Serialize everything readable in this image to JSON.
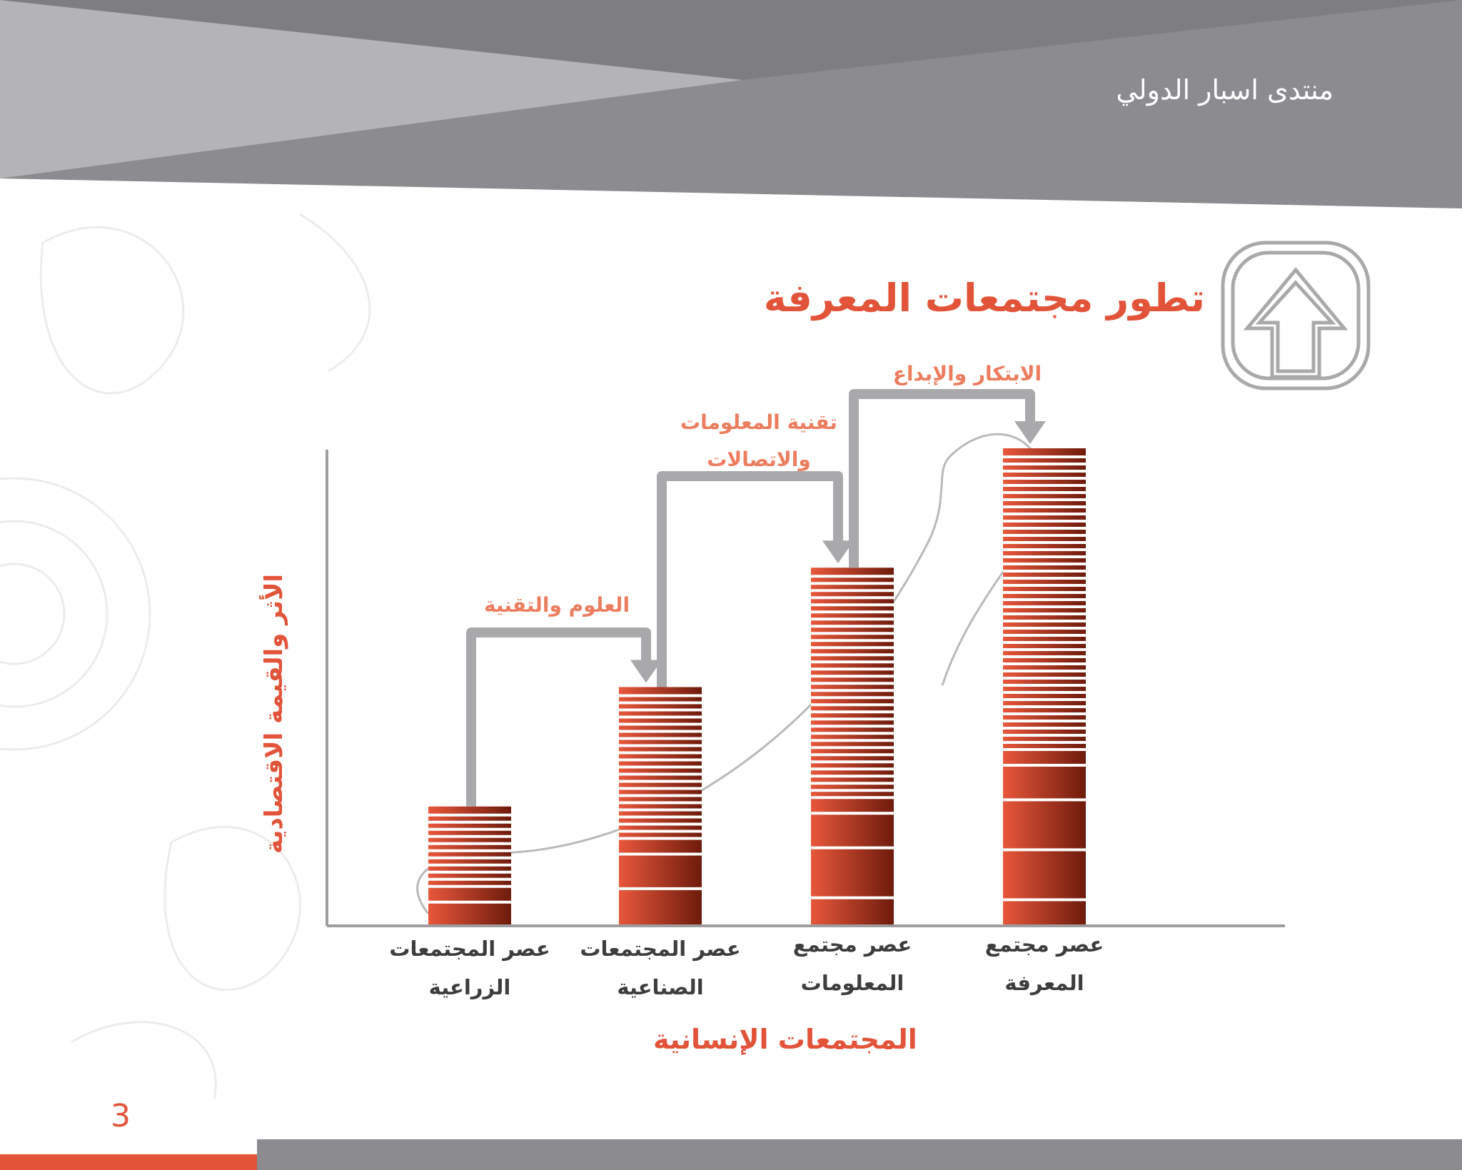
{
  "header": {
    "brand": "منتدى اسبار الدولي"
  },
  "page": {
    "title": "تطور مجتمعات المعرفة",
    "number": "3"
  },
  "icons": {
    "title_icon": "up-arrow-icon"
  },
  "colors": {
    "accent": "#e2543a",
    "label_orange": "#ec7d5e",
    "bar_dark": "#7a1f0e",
    "bar_light": "#e8573b",
    "header_gray": "#8c8c90",
    "arrow_gray": "#a9a9ab",
    "axis_gray": "#9d9d9f"
  },
  "chart_data": {
    "type": "bar",
    "title": "تطور مجتمعات المعرفة",
    "xlabel": "المجتمعات الإنسانية",
    "ylabel": "الأثر والقيمة الاقتصادية",
    "categories": [
      [
        "عصر المجتمعات",
        "الزراعية"
      ],
      [
        "عصر المجتمعات",
        "الصناعية"
      ],
      [
        "عصر مجتمع",
        "المعلومات"
      ],
      [
        "عصر مجتمع",
        "المعرفة"
      ]
    ],
    "values": [
      1,
      2,
      3,
      4
    ],
    "ylim": [
      0,
      4
    ],
    "transitions": [
      {
        "from": 0,
        "to": 1,
        "label": [
          "العلوم والتقنية"
        ]
      },
      {
        "from": 1,
        "to": 2,
        "label": [
          "تقنية المعلومات",
          "والاتصالات"
        ]
      },
      {
        "from": 2,
        "to": 3,
        "label": [
          "الابتكار والإبداع"
        ]
      }
    ],
    "grid": false,
    "legend": "none"
  }
}
